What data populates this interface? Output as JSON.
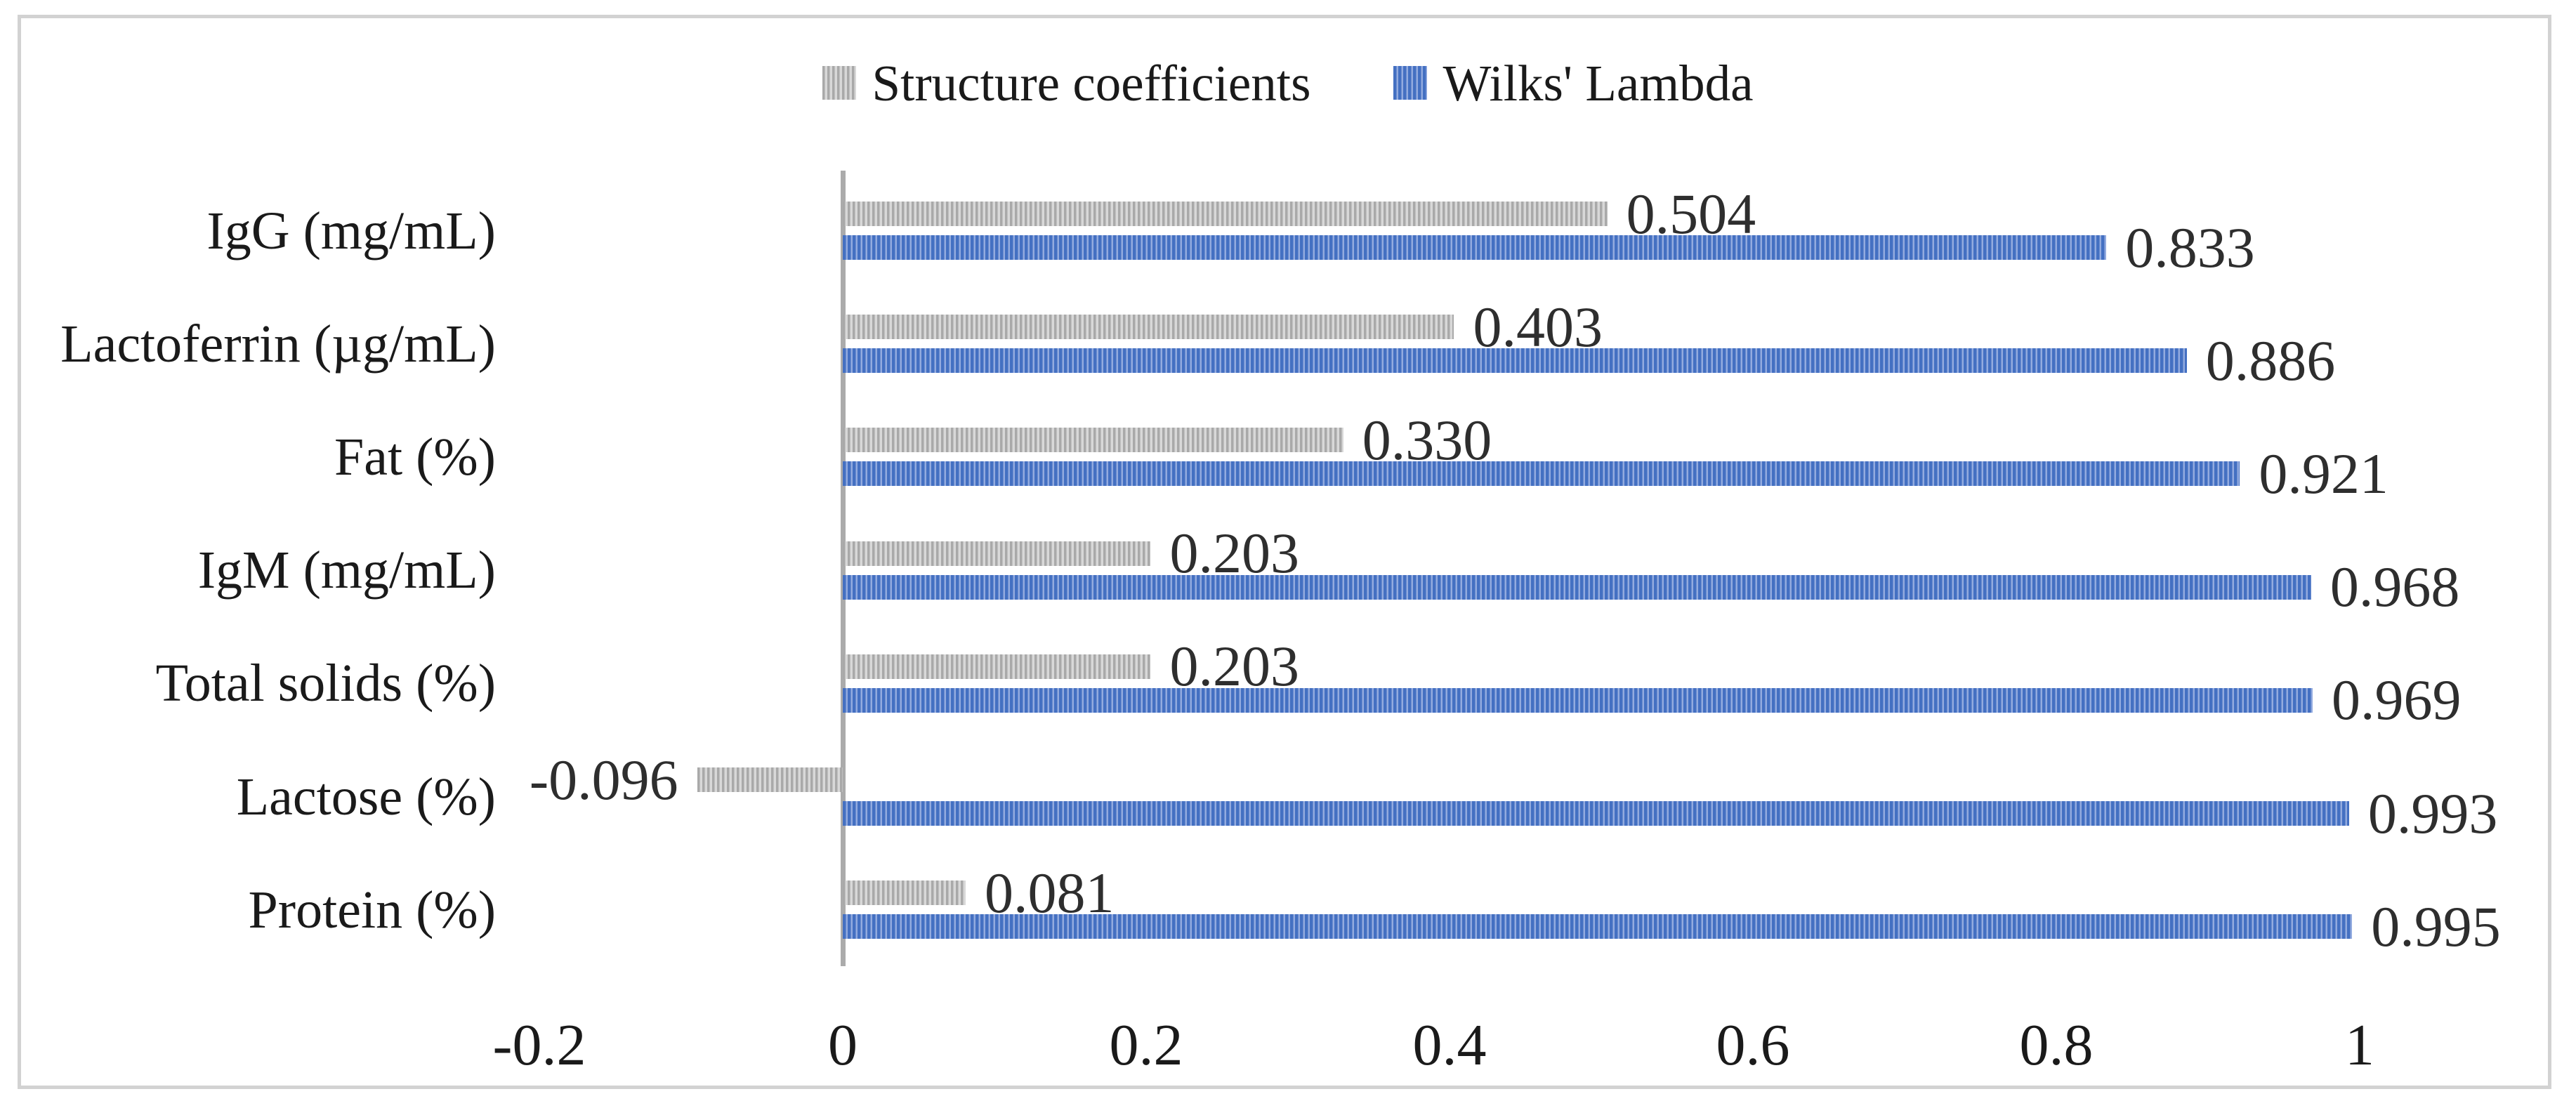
{
  "chart_data": {
    "type": "bar",
    "orientation": "horizontal",
    "title": "",
    "xlabel": "",
    "ylabel": "",
    "categories": [
      "IgG (mg/mL)",
      "Lactoferrin (µg/mL)",
      "Fat (%)",
      "IgM (mg/mL)",
      "Total solids (%)",
      "Lactose (%)",
      "Protein (%)"
    ],
    "series": [
      {
        "name": "Structure coefficients",
        "color": "#a6a6a6",
        "stripe_color": "#d8d8d8",
        "pattern": "vertical-stripes",
        "values": [
          0.504,
          0.403,
          0.33,
          0.203,
          0.203,
          -0.096,
          0.081
        ],
        "labels": [
          "0.504",
          "0.403",
          "0.330",
          "0.203",
          "0.203",
          "-0.096",
          "0.081"
        ]
      },
      {
        "name": "Wilks' Lambda",
        "color": "#4472c4",
        "stripe_color": "#93abdf",
        "pattern": "vertical-stripes",
        "values": [
          0.833,
          0.886,
          0.921,
          0.968,
          0.969,
          0.993,
          0.995
        ],
        "labels": [
          "0.833",
          "0.886",
          "0.921",
          "0.968",
          "0.969",
          "0.993",
          "0.995"
        ]
      }
    ],
    "x_axis": {
      "min": -0.2,
      "max": 1,
      "tick_values": [
        -0.2,
        0,
        0.2,
        0.4,
        0.6,
        0.8,
        1
      ],
      "tick_labels": [
        "-0.2",
        "0",
        "0.2",
        "0.4",
        "0.6",
        "0.8",
        "1"
      ]
    },
    "grid": false,
    "legend_position": "top",
    "data_labels": "outside-end"
  },
  "colors": {
    "background": "#ffffff",
    "figure_border": "#d2d2d2",
    "axis_line": "#ababab",
    "category_text": "#1a1a1a",
    "tick_text": "#1a1a1a",
    "value_text": "#2e2e2e"
  }
}
